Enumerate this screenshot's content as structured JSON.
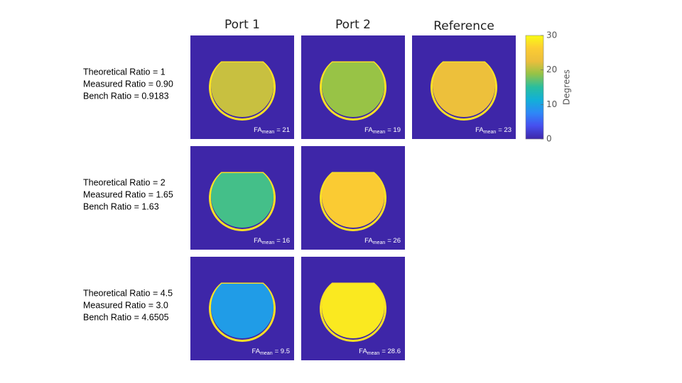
{
  "columns": [
    "Port 1",
    "Port 2",
    "Reference"
  ],
  "rows": [
    {
      "labels": [
        "Theoretical Ratio = 1",
        "Measured Ratio = 0.90",
        "Bench Ratio = 0.9183"
      ],
      "panels": [
        {
          "symbol": "FA",
          "subscript": "mean",
          "value": 21,
          "value_label": "= 21"
        },
        {
          "symbol": "FA",
          "subscript": "mean",
          "value": 19,
          "value_label": "= 19"
        },
        {
          "symbol": "FA",
          "subscript": "mean",
          "value": 23,
          "value_label": "= 23"
        }
      ]
    },
    {
      "labels": [
        "Theoretical Ratio = 2",
        "Measured Ratio = 1.65",
        "Bench Ratio = 1.63"
      ],
      "panels": [
        {
          "symbol": "FA",
          "subscript": "mean",
          "value": 16,
          "value_label": "= 16"
        },
        {
          "symbol": "FA",
          "subscript": "mean",
          "value": 26,
          "value_label": "= 26"
        }
      ]
    },
    {
      "labels": [
        "Theoretical Ratio = 4.5",
        "Measured Ratio = 3.0",
        "Bench Ratio = 4.6505"
      ],
      "panels": [
        {
          "symbol": "FA",
          "subscript": "mean",
          "value": 9.5,
          "value_label": "= 9.5"
        },
        {
          "symbol": "FA",
          "subscript": "mean",
          "value": 28.6,
          "value_label": "= 28.6"
        }
      ]
    }
  ],
  "colorbar": {
    "label": "Degrees",
    "lim": [
      0,
      30
    ],
    "ticks": [
      0,
      10,
      20,
      30
    ]
  }
}
